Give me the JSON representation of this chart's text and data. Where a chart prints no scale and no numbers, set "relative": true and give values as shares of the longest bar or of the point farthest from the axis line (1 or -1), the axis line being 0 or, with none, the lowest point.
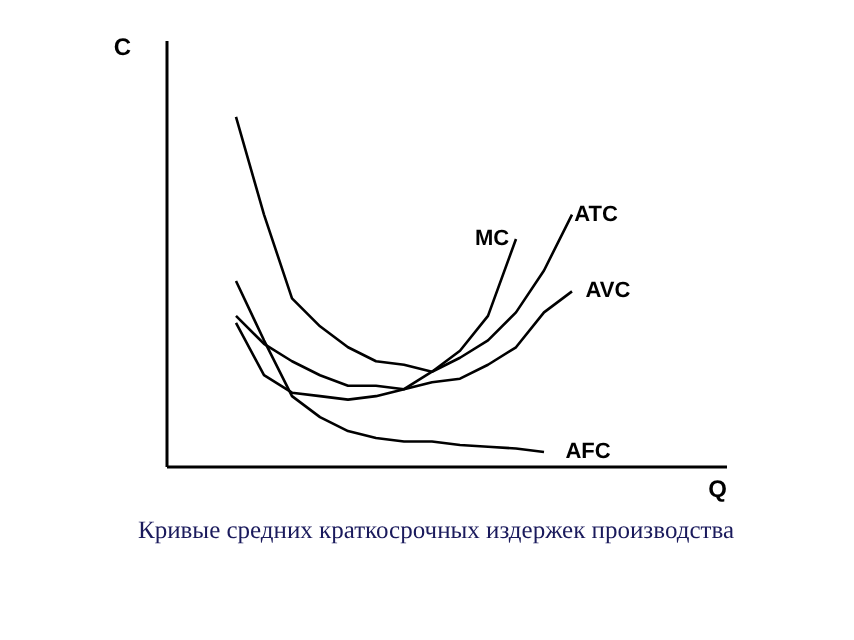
{
  "chart_data": {
    "type": "line",
    "relative": true,
    "xlabel": "Q",
    "ylabel": "C",
    "annotations": [
      "Кривые средних краткосрочных издержек производства"
    ],
    "marker": "none",
    "line_style": "solid",
    "categories": [
      null,
      null,
      null,
      null,
      null,
      null,
      null,
      null,
      null,
      null,
      null,
      null,
      null,
      null,
      null,
      null,
      null,
      null,
      null,
      null
    ],
    "series": [
      {
        "name": "ATC",
        "color": "#000000",
        "values": [
          null,
          null,
          1.0,
          0.72,
          0.48,
          0.4,
          0.34,
          0.3,
          0.29,
          0.27,
          0.31,
          0.36,
          0.44,
          0.56,
          0.72,
          null,
          null,
          null,
          null,
          null
        ]
      },
      {
        "name": "MC",
        "color": "#000000",
        "values": [
          null,
          null,
          0.41,
          0.26,
          0.21,
          0.2,
          0.19,
          0.2,
          0.22,
          0.27,
          0.33,
          0.43,
          0.65,
          null,
          null,
          null,
          null,
          null,
          null,
          null
        ]
      },
      {
        "name": "AVC",
        "color": "#000000",
        "values": [
          null,
          null,
          0.43,
          0.35,
          0.3,
          0.26,
          0.23,
          0.23,
          0.22,
          0.24,
          0.25,
          0.29,
          0.34,
          0.44,
          0.5,
          null,
          null,
          null,
          null,
          null
        ]
      },
      {
        "name": "AFC",
        "color": "#000000",
        "values": [
          null,
          null,
          0.53,
          0.36,
          0.2,
          0.14,
          0.1,
          0.08,
          0.07,
          0.07,
          0.06,
          0.055,
          0.05,
          0.04,
          null,
          null,
          null,
          null,
          null,
          null
        ]
      }
    ]
  }
}
